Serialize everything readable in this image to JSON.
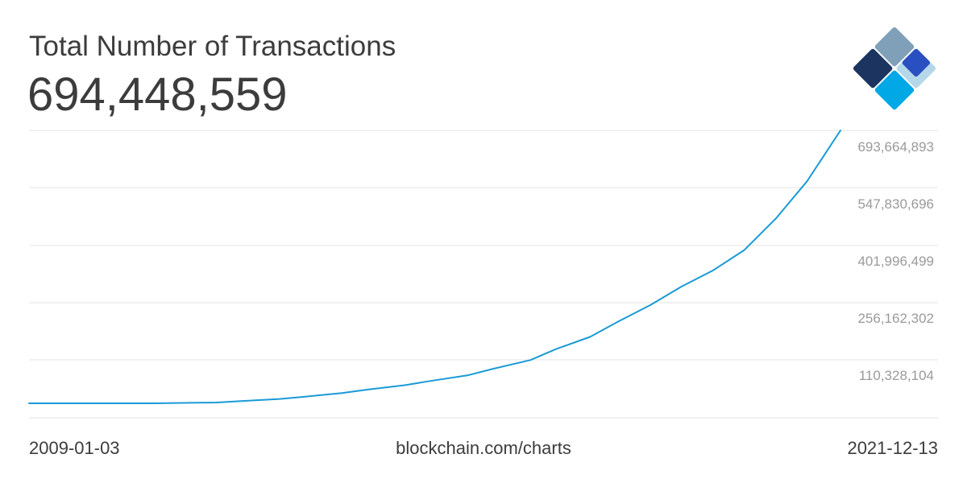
{
  "header": {
    "title": "Total Number of Transactions",
    "value": "694,448,559"
  },
  "logo": {
    "name": "blockchain-logo",
    "colors": {
      "top": "#7fa0b8",
      "left": "#1b3560",
      "right": "#2a4fc0",
      "bottom": "#00a8e6",
      "corner": "#b5d7ea"
    }
  },
  "footer": {
    "start_date": "2009-01-03",
    "source": "blockchain.com/charts",
    "end_date": "2021-12-13"
  },
  "colors": {
    "line": "#1a9ad6",
    "grid": "#e3e3e3",
    "text": "#3c3c3c",
    "tick": "#9a9a9a"
  },
  "chart_data": {
    "type": "line",
    "title": "Total Number of Transactions",
    "xlabel": "",
    "ylabel": "",
    "x_range": [
      "2009-01-03",
      "2021-12-13"
    ],
    "ylim": [
      0,
      694448559
    ],
    "yticks": [
      110328104,
      256162302,
      401996499,
      547830696,
      693664893
    ],
    "ytick_labels": [
      "110,328,104",
      "256,162,302",
      "401,996,499",
      "547,830,696",
      "693,664,893"
    ],
    "grid": true,
    "legend": "none",
    "series": [
      {
        "x": [
          "2009-01-03",
          "2010-06-01",
          "2011-01-01",
          "2012-01-01",
          "2012-06-01",
          "2013-01-01",
          "2013-06-01",
          "2014-01-01",
          "2014-06-01",
          "2015-01-01",
          "2015-06-01",
          "2016-01-01",
          "2016-06-01",
          "2017-01-01",
          "2017-06-01",
          "2017-12-15",
          "2018-06-01",
          "2018-12-01",
          "2019-06-01",
          "2019-12-01",
          "2020-06-01",
          "2020-12-01",
          "2021-06-01",
          "2021-12-13"
        ],
        "values": [
          0,
          0,
          100000,
          2000000,
          6000000,
          11000000,
          17000000,
          26000000,
          35000000,
          46000000,
          57000000,
          71000000,
          88000000,
          110000000,
          138000000,
          169000000,
          209000000,
          250000000,
          297000000,
          338000000,
          390000000,
          470000000,
          565000000,
          694448559
        ]
      }
    ]
  }
}
